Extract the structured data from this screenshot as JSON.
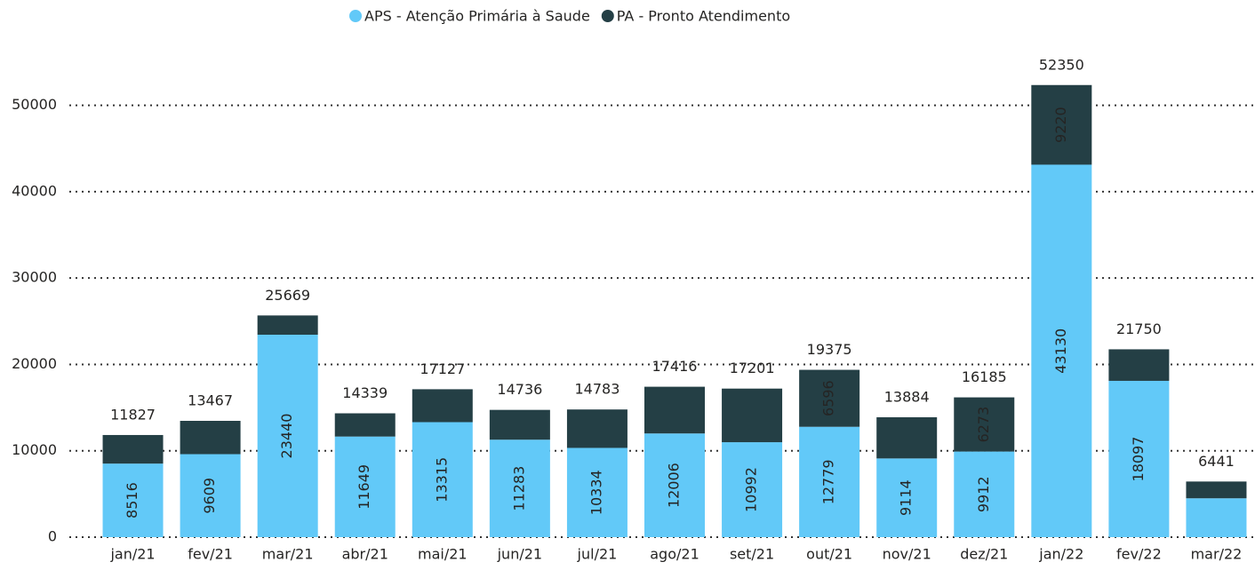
{
  "chart_data": {
    "type": "stacked_bar",
    "categories": [
      "jan/21",
      "fev/21",
      "mar/21",
      "abr/21",
      "mai/21",
      "jun/21",
      "jul/21",
      "ago/21",
      "set/21",
      "out/21",
      "nov/21",
      "dez/21",
      "jan/22",
      "fev/22",
      "mar/22"
    ],
    "series": [
      {
        "name": "APS - Atenção Primária à Saude",
        "color": "#62c9f8",
        "values": [
          8516,
          9609,
          23440,
          11649,
          13315,
          11283,
          10334,
          12006,
          10992,
          12779,
          9114,
          9912,
          43130,
          18097,
          4500
        ],
        "value_labels": [
          "8516",
          "9609",
          "23440",
          "11649",
          "13315",
          "11283",
          "10334",
          "12006",
          "10992",
          "12779",
          "9114",
          "9912",
          "43130",
          "18097",
          null
        ]
      },
      {
        "name": "PA - Pronto Atendimento",
        "color": "#243f45",
        "values": [
          3311,
          3858,
          2229,
          2690,
          3812,
          3453,
          4449,
          5410,
          6209,
          6596,
          4770,
          6273,
          9220,
          3653,
          1941
        ],
        "value_labels": [
          null,
          null,
          null,
          null,
          null,
          null,
          null,
          null,
          null,
          "6596",
          null,
          "6273",
          "9220",
          null,
          null
        ]
      }
    ],
    "totals": [
      11827,
      13467,
      25669,
      14339,
      17127,
      14736,
      14783,
      17416,
      17201,
      19375,
      13884,
      16185,
      52350,
      21750,
      6441
    ],
    "ylim": [
      0,
      55000
    ],
    "yticks": [
      0,
      10000,
      20000,
      30000,
      40000,
      50000
    ],
    "grid": true,
    "legend": "top"
  }
}
